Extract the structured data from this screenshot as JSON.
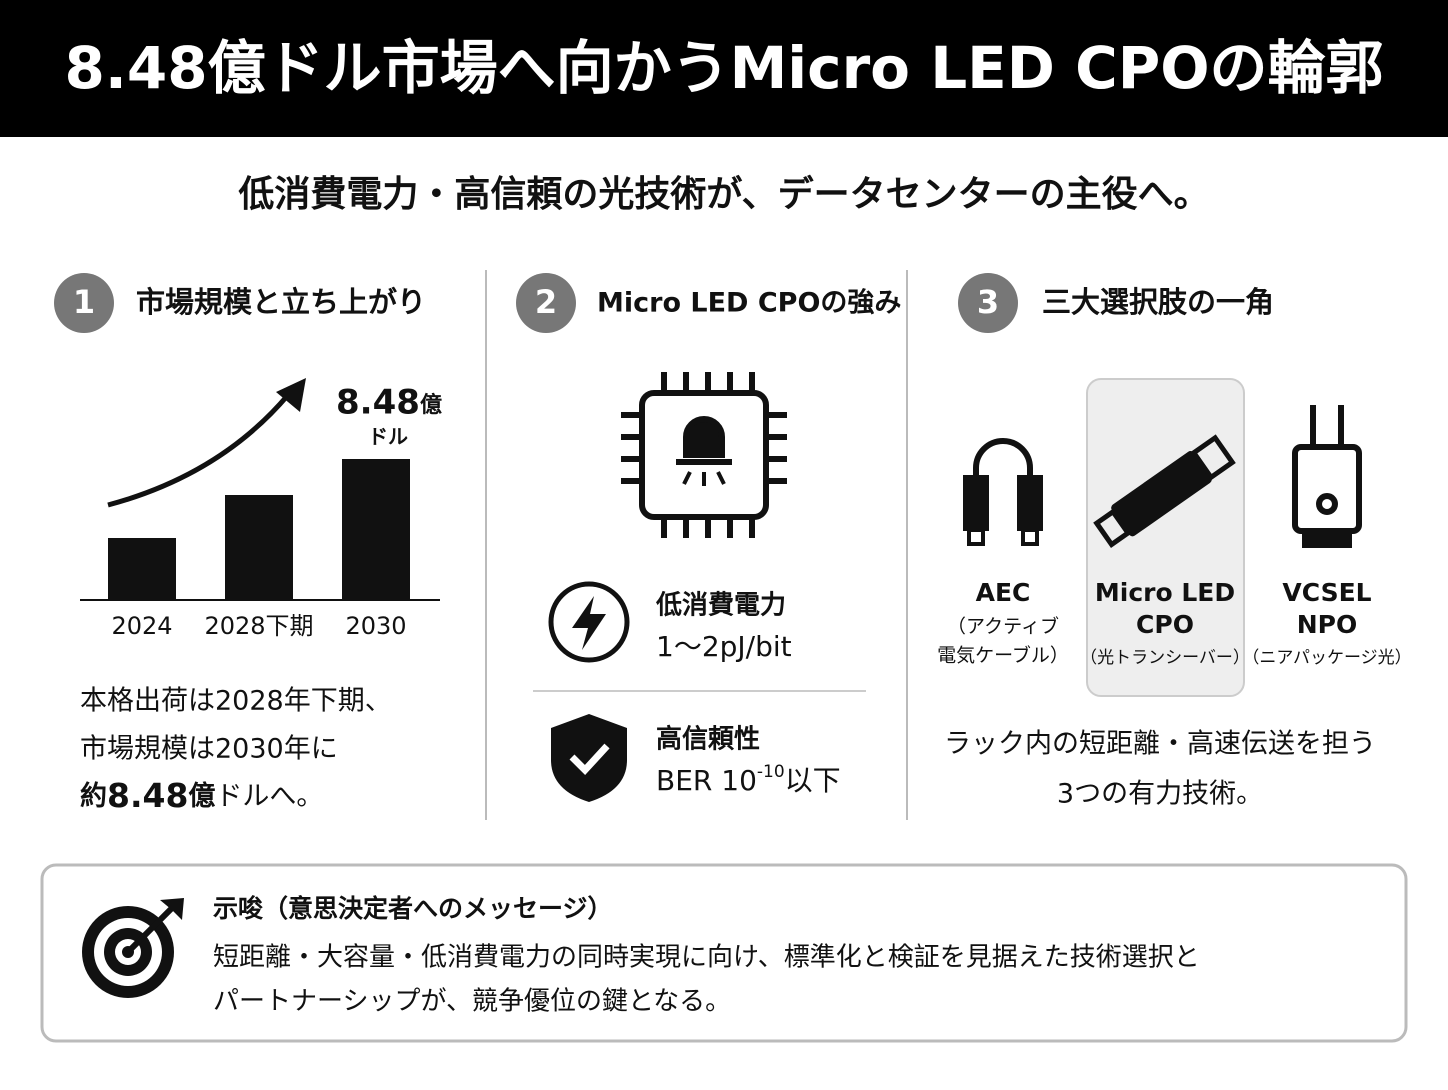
{
  "header": {
    "title": "8.48億ドル市場へ向かうMicro LED CPOの輪郭"
  },
  "subtitle": "低消費電力・高信頼の光技術が、データセンターの主役へ。",
  "sections": [
    {
      "number": "1",
      "heading": "市場規模と立ち上がり",
      "chart": {
        "peak_value": "8.48",
        "peak_unit": "億",
        "peak_currency": "ドル",
        "categories": [
          "2024",
          "2028下期",
          "2030"
        ]
      },
      "text_lines": [
        "本格出荷は2028年下期、",
        "市場規模は2030年に"
      ],
      "last_line": [
        "約",
        "8.48",
        "億",
        "ドルへ。"
      ]
    },
    {
      "number": "2",
      "heading": "Micro LED CPOの強み",
      "features": [
        {
          "title": "低消費電力",
          "detail": "1〜2pJ/bit"
        },
        {
          "title": "高信頼性",
          "detail_parts": [
            "BER 10",
            "-10",
            "以下"
          ]
        }
      ]
    },
    {
      "number": "3",
      "heading": "三大選択肢の一角",
      "options": [
        {
          "name_lines": [
            "AEC"
          ],
          "sub_lines": [
            "（アクティブ",
            "電気ケーブル）"
          ]
        },
        {
          "name_lines": [
            "Micro LED",
            "CPO"
          ],
          "sub_lines": [
            "（光トランシーバー）"
          ]
        },
        {
          "name_lines": [
            "VCSEL",
            "NPO"
          ],
          "sub_lines": [
            "（ニアパッケージ光）"
          ]
        }
      ],
      "caption_lines": [
        "ラック内の短距離・高速伝送を担う",
        "3つの有力技術。"
      ]
    }
  ],
  "implication": {
    "title": "示唆（意思決定者へのメッセージ）",
    "lines": [
      "短距離・大容量・低消費電力の同時実現に向け、標準化と検証を見据えた技術選択と",
      "パートナーシップが、競争優位の鍵となる。"
    ]
  }
}
